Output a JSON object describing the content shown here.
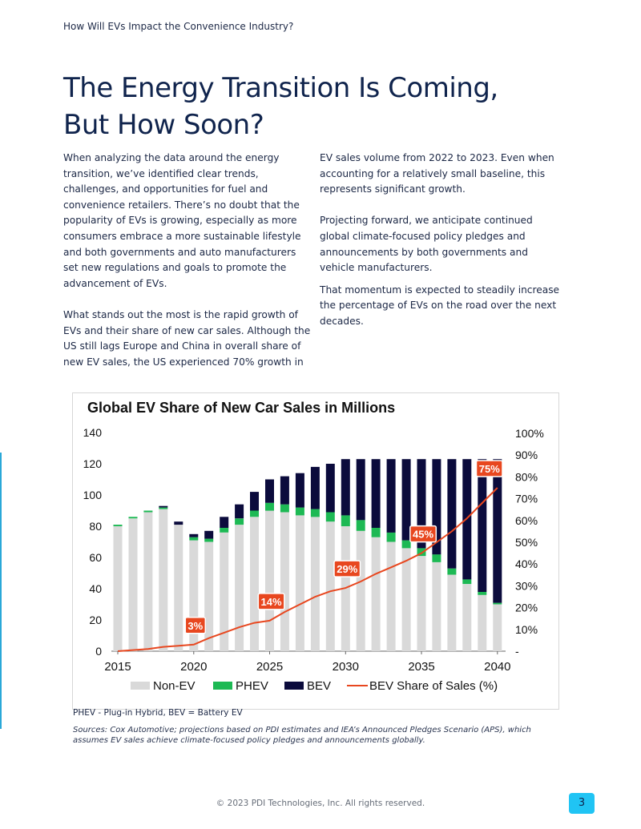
{
  "header": {
    "running_title": "How Will EVs Impact the Convenience Industry?"
  },
  "title": {
    "line1": "The Energy Transition Is Coming,",
    "line2": "But How Soon?"
  },
  "body_left": {
    "p1": "When analyzing the data around the energy transition, we’ve identified clear trends, challenges, and opportunities for fuel and convenience retailers. There’s no doubt that the popularity of EVs is growing, especially as more consumers embrace a more sustainable lifestyle and both governments and auto manufacturers set new regulations and goals to promote the advancement of EVs.",
    "p2": "What stands out the most is the rapid growth of EVs and their share of new car sales. Although the US still lags Europe and China in overall share of new EV sales, the US experienced 70% growth in"
  },
  "body_right": {
    "p1": "EV sales volume from 2022 to 2023. Even when accounting for a relatively small baseline, this represents significant growth.",
    "p2": "Projecting forward, we anticipate continued global climate-focused policy pledges and announcements by both governments and vehicle manufacturers.",
    "p3": "That momentum is expected to steadily increase the percentage of EVs on the road over the next decades."
  },
  "chart_data": {
    "type": "bar",
    "title": "Global EV Share of New Car Sales in Millions",
    "x": [
      2015,
      2016,
      2017,
      2018,
      2019,
      2020,
      2021,
      2022,
      2023,
      2024,
      2025,
      2026,
      2027,
      2028,
      2029,
      2030,
      2031,
      2032,
      2033,
      2034,
      2035,
      2036,
      2037,
      2038,
      2039,
      2040
    ],
    "x_ticks": [
      "2015",
      "2020",
      "2025",
      "2030",
      "2035",
      "2040"
    ],
    "y_left_ticks": [
      "0",
      "20",
      "40",
      "60",
      "80",
      "100",
      "120",
      "140"
    ],
    "y_right_ticks": [
      "-",
      "10%",
      "20%",
      "30%",
      "40%",
      "50%",
      "60%",
      "70%",
      "80%",
      "90%",
      "100%"
    ],
    "ylim": [
      0,
      140
    ],
    "y2lim": [
      0,
      100
    ],
    "stacked": true,
    "series": [
      {
        "name": "Non-EV",
        "color": "#d9d9d9",
        "values": [
          80,
          85,
          89,
          91,
          81,
          71,
          70,
          76,
          81,
          86,
          90,
          89,
          87,
          86,
          83,
          80,
          77,
          73,
          70,
          66,
          61,
          57,
          49,
          43,
          36,
          30
        ]
      },
      {
        "name": "PHEV",
        "color": "#1db954",
        "values": [
          1,
          1,
          1,
          1,
          0,
          2,
          2,
          3,
          4,
          4,
          5,
          5,
          5,
          5,
          6,
          7,
          7,
          6,
          6,
          5,
          5,
          5,
          4,
          3,
          2,
          1
        ]
      },
      {
        "name": "BEV",
        "color": "#0b0b3c",
        "values": [
          0,
          0,
          0,
          1,
          2,
          2,
          5,
          7,
          9,
          12,
          15,
          18,
          22,
          27,
          31,
          36,
          39,
          44,
          47,
          52,
          57,
          61,
          70,
          77,
          85,
          92
        ]
      },
      {
        "name": "BEV Share of Sales (%)",
        "type": "line",
        "axis": "right",
        "color": "#e8471f",
        "values": [
          0,
          0.5,
          1,
          2,
          2.5,
          3,
          6,
          8.5,
          11,
          13,
          14,
          18,
          21.5,
          25,
          27.5,
          29,
          32,
          35.5,
          38.5,
          41.5,
          45,
          50,
          55,
          61,
          68,
          75
        ]
      }
    ],
    "annotations": [
      {
        "x": 2020,
        "label": "3%"
      },
      {
        "x": 2025,
        "label": "14%"
      },
      {
        "x": 2030,
        "label": "29%"
      },
      {
        "x": 2035,
        "label": "45%"
      },
      {
        "x": 2040,
        "label": "75%"
      }
    ],
    "legend_position": "bottom",
    "grid": false
  },
  "notes": {
    "footnote": "PHEV - Plug-in Hybrid, BEV = Battery EV",
    "sources": "Sources: Cox Automotive; projections based on PDI estimates and IEA’s Announced Pledges Scenario (APS), which assumes EV sales achieve climate-focused policy pledges and announcements globally."
  },
  "footer": {
    "copyright": "© 2023 PDI Technologies, Inc.  All rights reserved.",
    "page_number": "3"
  }
}
